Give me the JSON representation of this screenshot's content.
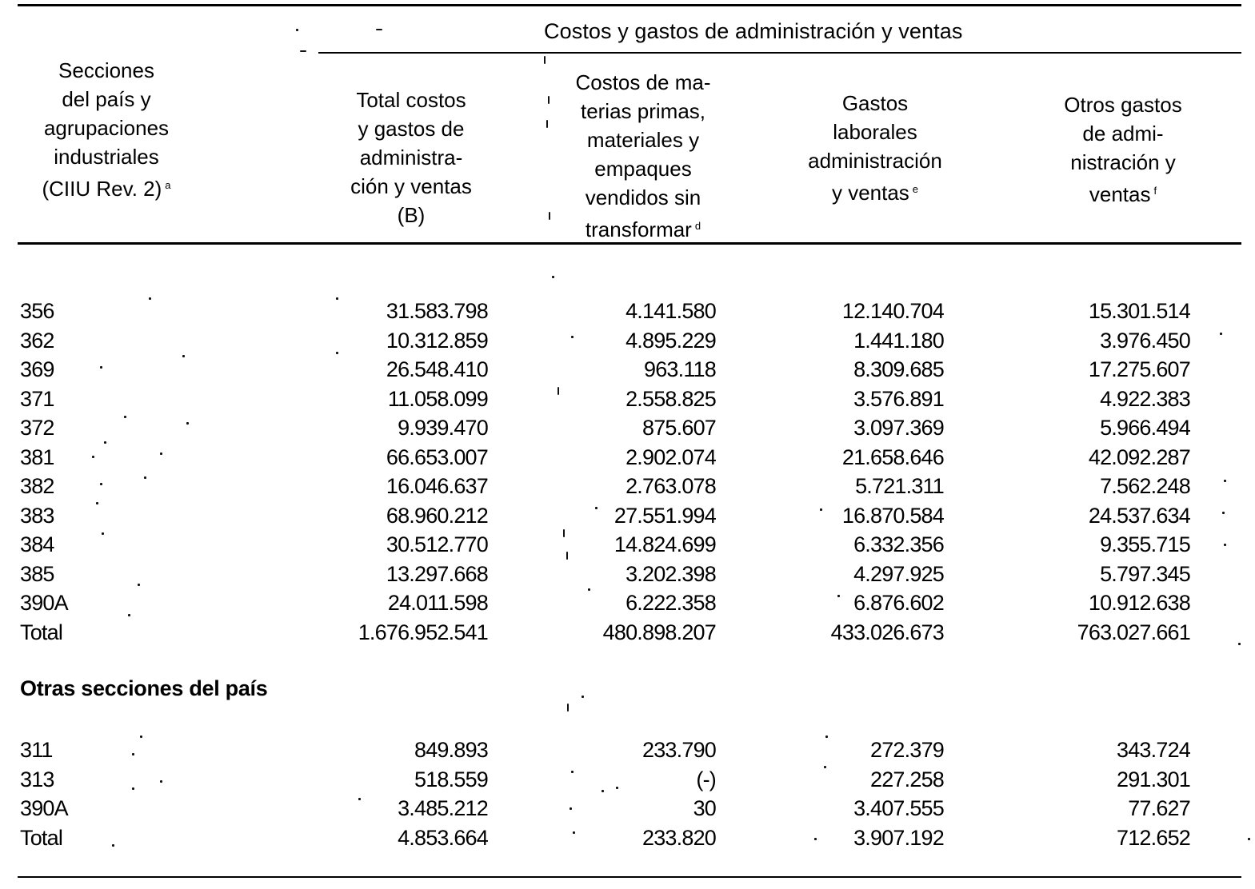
{
  "header": {
    "group_title": "Costos y gastos de administración y ventas",
    "columns": [
      {
        "lines": [
          "Secciones",
          "del país y",
          "agrupaciones",
          "industriales",
          "(CIIU Rev. 2)"
        ],
        "note": "a"
      },
      {
        "lines": [
          "Total costos",
          "y gastos de",
          "administra-",
          "ción y ventas",
          "(B)"
        ],
        "note": ""
      },
      {
        "lines": [
          "Costos de ma-",
          "terias primas,",
          "materiales y",
          "empaques",
          "vendidos sin",
          "transformar"
        ],
        "note": "d"
      },
      {
        "lines": [
          "Gastos",
          "laborales",
          "administración",
          "y ventas"
        ],
        "note": "e"
      },
      {
        "lines": [
          "Otros gastos",
          "de admi-",
          "nistración y",
          "ventas"
        ],
        "note": "f"
      }
    ]
  },
  "sections": [
    {
      "title": "",
      "rows": [
        {
          "code": "356",
          "total": "31.583.798",
          "materias": "4.141.580",
          "laborales": "12.140.704",
          "otros": "15.301.514"
        },
        {
          "code": "362",
          "total": "10.312.859",
          "materias": "4.895.229",
          "laborales": "1.441.180",
          "otros": "3.976.450"
        },
        {
          "code": "369",
          "total": "26.548.410",
          "materias": "963.118",
          "laborales": "8.309.685",
          "otros": "17.275.607"
        },
        {
          "code": "371",
          "total": "11.058.099",
          "materias": "2.558.825",
          "laborales": "3.576.891",
          "otros": "4.922.383"
        },
        {
          "code": "372",
          "total": "9.939.470",
          "materias": "875.607",
          "laborales": "3.097.369",
          "otros": "5.966.494"
        },
        {
          "code": "381",
          "total": "66.653.007",
          "materias": "2.902.074",
          "laborales": "21.658.646",
          "otros": "42.092.287"
        },
        {
          "code": "382",
          "total": "16.046.637",
          "materias": "2.763.078",
          "laborales": "5.721.311",
          "otros": "7.562.248"
        },
        {
          "code": "383",
          "total": "68.960.212",
          "materias": "27.551.994",
          "laborales": "16.870.584",
          "otros": "24.537.634"
        },
        {
          "code": "384",
          "total": "30.512.770",
          "materias": "14.824.699",
          "laborales": "6.332.356",
          "otros": "9.355.715"
        },
        {
          "code": "385",
          "total": "13.297.668",
          "materias": "3.202.398",
          "laborales": "4.297.925",
          "otros": "5.797.345"
        },
        {
          "code": "390A",
          "total": "24.011.598",
          "materias": "6.222.358",
          "laborales": "6.876.602",
          "otros": "10.912.638"
        },
        {
          "code": "Total",
          "total": "1.676.952.541",
          "materias": "480.898.207",
          "laborales": "433.026.673",
          "otros": "763.027.661"
        }
      ]
    },
    {
      "title": "Otras secciones del país",
      "rows": [
        {
          "code": "311",
          "total": "849.893",
          "materias": "233.790",
          "laborales": "272.379",
          "otros": "343.724"
        },
        {
          "code": "313",
          "total": "518.559",
          "materias": "(-)",
          "laborales": "227.258",
          "otros": "291.301"
        },
        {
          "code": "390A",
          "total": "3.485.212",
          "materias": "30",
          "laborales": "3.407.555",
          "otros": "77.627"
        },
        {
          "code": "Total",
          "total": "4.853.664",
          "materias": "233.820",
          "laborales": "3.907.192",
          "otros": "712.652"
        }
      ]
    }
  ]
}
